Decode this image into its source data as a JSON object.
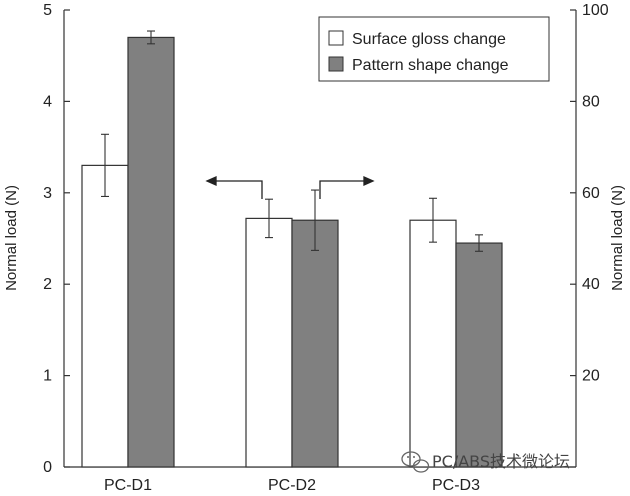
{
  "chart_data": {
    "type": "bar",
    "categories": [
      "PC-D1",
      "PC-D2",
      "PC-D3"
    ],
    "series": [
      {
        "name": "Surface gloss change",
        "values": [
          3.3,
          2.72,
          2.7
        ],
        "errors": [
          0.34,
          0.21,
          0.24
        ],
        "color": "#ffffff"
      },
      {
        "name": "Pattern shape change",
        "values": [
          4.7,
          2.7,
          2.45
        ],
        "errors": [
          0.07,
          0.33,
          0.09
        ],
        "color": "#808080"
      }
    ],
    "ylabel": "Normal load (N)",
    "y2label": "Normal load (N)",
    "ylim": [
      0,
      5
    ],
    "y2lim": [
      0,
      100
    ],
    "yticks": [
      "0",
      "1",
      "2",
      "3",
      "4",
      "5"
    ],
    "y2ticks": [
      "",
      "20",
      "40",
      "60",
      "80",
      "100"
    ],
    "grid": false,
    "legend_position": "top-right"
  },
  "watermark": "PC/ABS技术微论坛"
}
